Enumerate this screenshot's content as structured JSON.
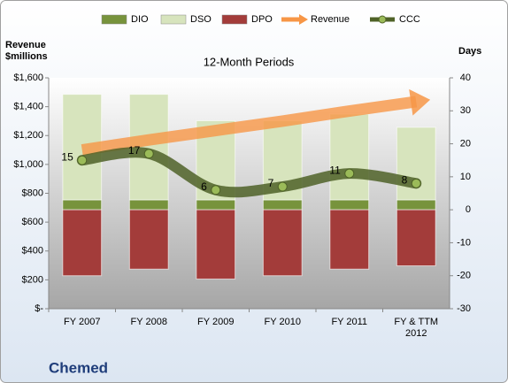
{
  "chart_data": {
    "type": "bar",
    "title": "12-Month Periods",
    "ylabel": "Revenue $millions",
    "y2label": "Days",
    "footer": "Chemed",
    "categories": [
      "FY 2007",
      "FY 2008",
      "FY 2009",
      "FY 2010",
      "FY 2011",
      "FY & TTM 2012"
    ],
    "series": [
      {
        "name": "DIO",
        "type": "bar",
        "axis": "y2",
        "color": "#77933c",
        "values": [
          3,
          3,
          3,
          3,
          3,
          3
        ]
      },
      {
        "name": "DSO",
        "type": "bar",
        "axis": "y2",
        "color": "#d7e4bd",
        "values": [
          32,
          32,
          24,
          24,
          26,
          22
        ]
      },
      {
        "name": "DPO",
        "type": "bar",
        "axis": "y2",
        "color": "#a33c3a",
        "values": [
          -20,
          -18,
          -21,
          -20,
          -18,
          -17
        ]
      },
      {
        "name": "Revenue",
        "type": "arrow",
        "axis": "y",
        "color": "#f79646",
        "values": [
          1100,
          1170,
          1235,
          1300,
          1370,
          1435
        ]
      },
      {
        "name": "CCC",
        "type": "line",
        "axis": "y2",
        "color": "#4f6228",
        "values": [
          15,
          17,
          6,
          7,
          11,
          8
        ]
      }
    ],
    "ylim": [
      0,
      1600
    ],
    "yticks": [
      {
        "value": 0,
        "label": "$-"
      },
      {
        "value": 200,
        "label": "$200"
      },
      {
        "value": 400,
        "label": "$400"
      },
      {
        "value": 600,
        "label": "$600"
      },
      {
        "value": 800,
        "label": "$800"
      },
      {
        "value": 1000,
        "label": "$1,000"
      },
      {
        "value": 1200,
        "label": "$1,200"
      },
      {
        "value": 1400,
        "label": "$1,400"
      },
      {
        "value": 1600,
        "label": "$1,600"
      }
    ],
    "y2lim": [
      -30,
      40
    ],
    "y2ticks": [
      -30,
      -20,
      -10,
      0,
      10,
      20,
      30,
      40
    ],
    "grid": false,
    "legend": "top"
  }
}
